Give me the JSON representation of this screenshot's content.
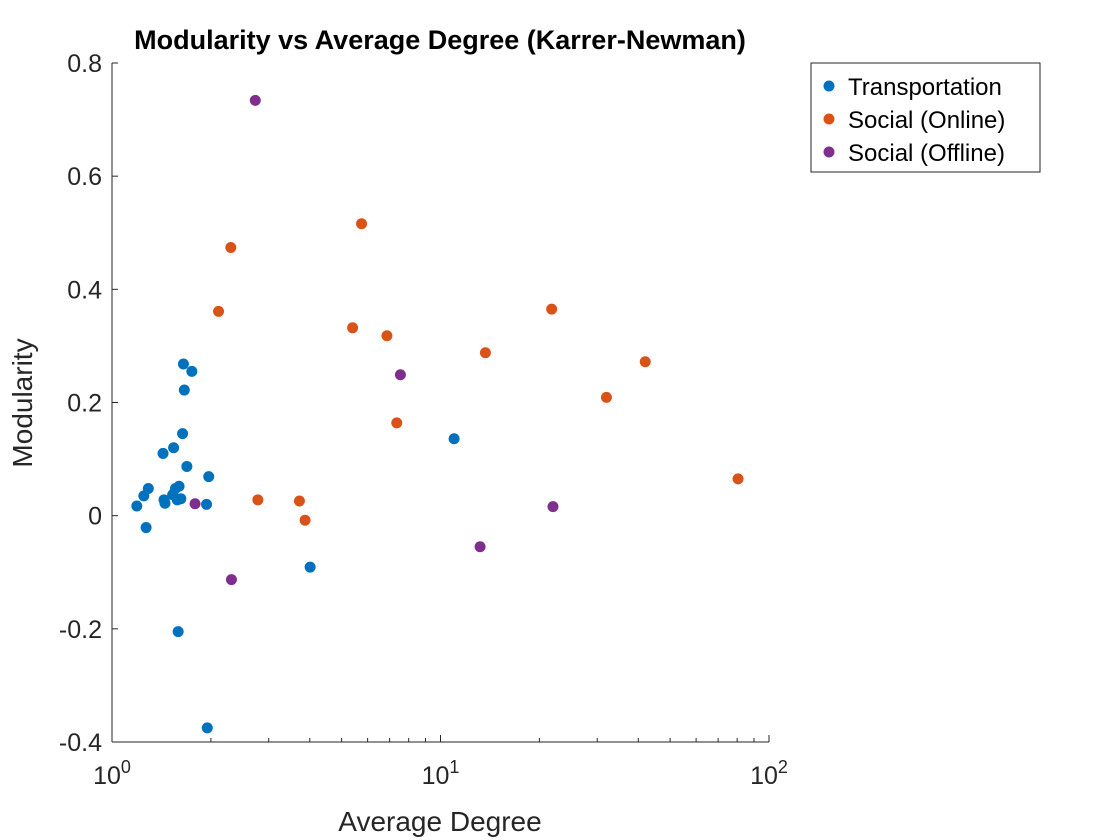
{
  "chart_data": {
    "type": "scatter",
    "title": "Modularity vs Average Degree (Karrer-Newman)",
    "xlabel": "Average Degree",
    "ylabel": "Modularity",
    "xscale": "log",
    "xlim": [
      1,
      100
    ],
    "ylim": [
      -0.4,
      0.8
    ],
    "xticks": [
      {
        "value": 1,
        "base": "10",
        "exp": "0"
      },
      {
        "value": 10,
        "base": "10",
        "exp": "1"
      },
      {
        "value": 100,
        "base": "10",
        "exp": "2"
      }
    ],
    "yticks": [
      {
        "value": -0.4,
        "label": "-0.4"
      },
      {
        "value": -0.2,
        "label": "-0.2"
      },
      {
        "value": 0,
        "label": "0"
      },
      {
        "value": 0.2,
        "label": "0.2"
      },
      {
        "value": 0.4,
        "label": "0.4"
      },
      {
        "value": 0.6,
        "label": "0.6"
      },
      {
        "value": 0.8,
        "label": "0.8"
      }
    ],
    "grid": false,
    "legend_position": "top-right outside",
    "series": [
      {
        "name": "Transportation",
        "color": "#0072BD",
        "points": [
          [
            1.19,
            0.017
          ],
          [
            1.25,
            0.035
          ],
          [
            1.27,
            -0.021
          ],
          [
            1.29,
            0.048
          ],
          [
            1.43,
            0.11
          ],
          [
            1.44,
            0.028
          ],
          [
            1.45,
            0.022
          ],
          [
            1.53,
            0.037
          ],
          [
            1.54,
            0.12
          ],
          [
            1.56,
            0.048
          ],
          [
            1.58,
            0.028
          ],
          [
            1.59,
            -0.205
          ],
          [
            1.6,
            0.052
          ],
          [
            1.62,
            0.03
          ],
          [
            1.64,
            0.145
          ],
          [
            1.65,
            0.268
          ],
          [
            1.66,
            0.222
          ],
          [
            1.69,
            0.087
          ],
          [
            1.75,
            0.255
          ],
          [
            1.94,
            0.02
          ],
          [
            1.95,
            -0.375
          ],
          [
            1.97,
            0.069
          ],
          [
            4.01,
            -0.091
          ],
          [
            11.0,
            0.136
          ]
        ]
      },
      {
        "name": "Social (Online)",
        "color": "#D95319",
        "points": [
          [
            2.11,
            0.361
          ],
          [
            2.3,
            0.474
          ],
          [
            2.78,
            0.028
          ],
          [
            3.72,
            0.026
          ],
          [
            3.87,
            -0.008
          ],
          [
            5.4,
            0.332
          ],
          [
            5.75,
            0.516
          ],
          [
            6.87,
            0.318
          ],
          [
            7.36,
            0.164
          ],
          [
            13.7,
            0.288
          ],
          [
            21.8,
            0.365
          ],
          [
            32.0,
            0.209
          ],
          [
            42.0,
            0.272
          ],
          [
            80.5,
            0.065
          ]
        ]
      },
      {
        "name": "Social (Offline)",
        "color": "#7E2F8E",
        "points": [
          [
            1.79,
            0.021
          ],
          [
            2.31,
            -0.113
          ],
          [
            2.73,
            0.734
          ],
          [
            7.55,
            0.249
          ],
          [
            13.2,
            -0.055
          ],
          [
            22.0,
            0.016
          ]
        ]
      }
    ]
  }
}
